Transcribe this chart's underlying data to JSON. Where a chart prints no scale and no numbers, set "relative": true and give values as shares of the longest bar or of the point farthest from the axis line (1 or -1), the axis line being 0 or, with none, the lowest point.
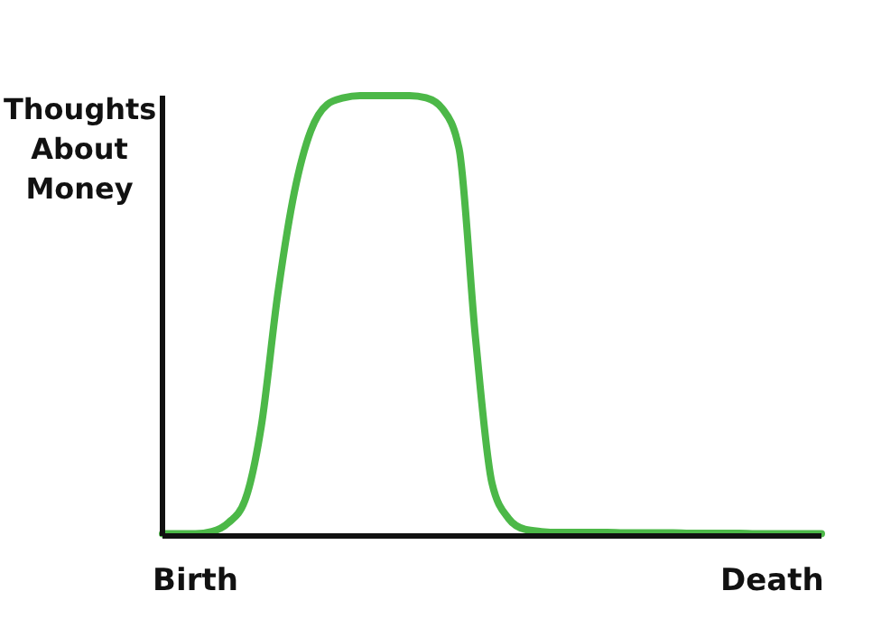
{
  "chart_data": {
    "type": "line",
    "relative": true,
    "ylabel": "Thoughts About Money",
    "grid": false,
    "legend": false,
    "marker": "none",
    "line_style": "solid",
    "categories": [
      null,
      null,
      "Birth",
      null,
      null,
      null,
      null,
      null,
      null,
      null,
      null,
      null,
      null,
      null,
      null,
      null,
      null,
      null,
      null,
      null,
      null,
      null,
      null,
      null,
      null,
      null,
      null,
      null,
      null,
      null,
      null,
      null,
      null,
      null,
      null,
      null,
      null,
      "Death",
      null,
      null,
      null
    ],
    "series": [
      {
        "color": "#4cb848",
        "values": [
          0.005,
          0.005,
          0.005,
          0.01,
          0.03,
          0.08,
          0.25,
          0.55,
          0.78,
          0.92,
          0.98,
          0.995,
          1,
          1,
          1,
          1,
          0.995,
          0.97,
          0.88,
          0.45,
          0.12,
          0.04,
          0.015,
          0.01,
          0.008,
          0.008,
          0.008,
          0.008,
          0.007,
          0.007,
          0.007,
          0.007,
          0.006,
          0.006,
          0.006,
          0.006,
          0.005,
          0.005,
          0.005,
          0.005,
          0.005
        ]
      }
    ]
  }
}
